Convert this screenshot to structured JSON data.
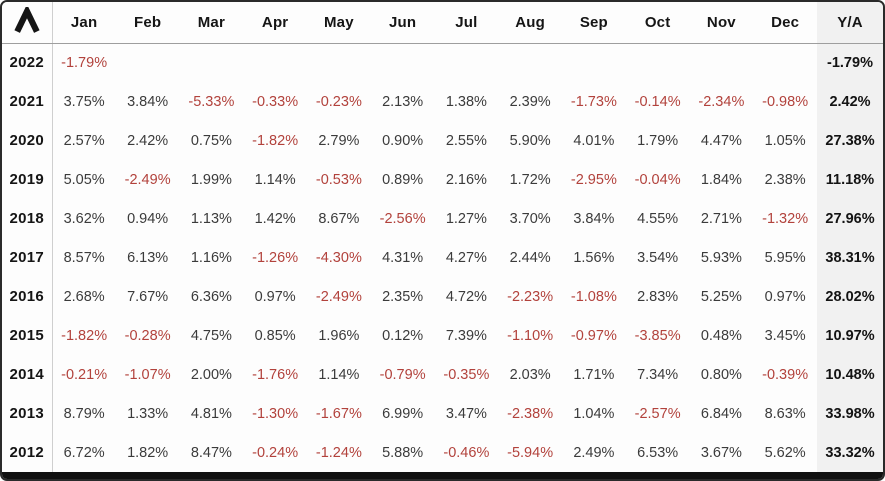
{
  "brand": {
    "logo_glyph": "caret-lambda"
  },
  "columns": [
    "Jan",
    "Feb",
    "Mar",
    "Apr",
    "May",
    "Jun",
    "Jul",
    "Aug",
    "Sep",
    "Oct",
    "Nov",
    "Dec"
  ],
  "ya_label": "Y/A",
  "colors": {
    "negative": "#b2423c",
    "positive": "#3b3b3b",
    "ya_background": "#f1f1f1",
    "header_rule": "#9e9e9e"
  },
  "chart_data": {
    "type": "table",
    "title": "Monthly returns by year (%) with yearly aggregate Y/A",
    "columns": [
      "Jan",
      "Feb",
      "Mar",
      "Apr",
      "May",
      "Jun",
      "Jul",
      "Aug",
      "Sep",
      "Oct",
      "Nov",
      "Dec",
      "Y/A"
    ],
    "rows_key": "rows"
  },
  "rows": [
    {
      "year": "2022",
      "values": [
        "-1.79%",
        "",
        "",
        "",
        "",
        "",
        "",
        "",
        "",
        "",
        "",
        ""
      ],
      "ya": "-1.79%"
    },
    {
      "year": "2021",
      "values": [
        "3.75%",
        "3.84%",
        "-5.33%",
        "-0.33%",
        "-0.23%",
        "2.13%",
        "1.38%",
        "2.39%",
        "-1.73%",
        "-0.14%",
        "-2.34%",
        "-0.98%"
      ],
      "ya": "2.42%"
    },
    {
      "year": "2020",
      "values": [
        "2.57%",
        "2.42%",
        "0.75%",
        "-1.82%",
        "2.79%",
        "0.90%",
        "2.55%",
        "5.90%",
        "4.01%",
        "1.79%",
        "4.47%",
        "1.05%"
      ],
      "ya": "27.38%"
    },
    {
      "year": "2019",
      "values": [
        "5.05%",
        "-2.49%",
        "1.99%",
        "1.14%",
        "-0.53%",
        "0.89%",
        "2.16%",
        "1.72%",
        "-2.95%",
        "-0.04%",
        "1.84%",
        "2.38%"
      ],
      "ya": "11.18%"
    },
    {
      "year": "2018",
      "values": [
        "3.62%",
        "0.94%",
        "1.13%",
        "1.42%",
        "8.67%",
        "-2.56%",
        "1.27%",
        "3.70%",
        "3.84%",
        "4.55%",
        "2.71%",
        "-1.32%"
      ],
      "ya": "27.96%"
    },
    {
      "year": "2017",
      "values": [
        "8.57%",
        "6.13%",
        "1.16%",
        "-1.26%",
        "-4.30%",
        "4.31%",
        "4.27%",
        "2.44%",
        "1.56%",
        "3.54%",
        "5.93%",
        "5.95%"
      ],
      "ya": "38.31%"
    },
    {
      "year": "2016",
      "values": [
        "2.68%",
        "7.67%",
        "6.36%",
        "0.97%",
        "-2.49%",
        "2.35%",
        "4.72%",
        "-2.23%",
        "-1.08%",
        "2.83%",
        "5.25%",
        "0.97%"
      ],
      "ya": "28.02%"
    },
    {
      "year": "2015",
      "values": [
        "-1.82%",
        "-0.28%",
        "4.75%",
        "0.85%",
        "1.96%",
        "0.12%",
        "7.39%",
        "-1.10%",
        "-0.97%",
        "-3.85%",
        "0.48%",
        "3.45%"
      ],
      "ya": "10.97%"
    },
    {
      "year": "2014",
      "values": [
        "-0.21%",
        "-1.07%",
        "2.00%",
        "-1.76%",
        "1.14%",
        "-0.79%",
        "-0.35%",
        "2.03%",
        "1.71%",
        "7.34%",
        "0.80%",
        "-0.39%"
      ],
      "ya": "10.48%"
    },
    {
      "year": "2013",
      "values": [
        "8.79%",
        "1.33%",
        "4.81%",
        "-1.30%",
        "-1.67%",
        "6.99%",
        "3.47%",
        "-2.38%",
        "1.04%",
        "-2.57%",
        "6.84%",
        "8.63%"
      ],
      "ya": "33.98%"
    },
    {
      "year": "2012",
      "values": [
        "6.72%",
        "1.82%",
        "8.47%",
        "-0.24%",
        "-1.24%",
        "5.88%",
        "-0.46%",
        "-5.94%",
        "2.49%",
        "6.53%",
        "3.67%",
        "5.62%"
      ],
      "ya": "33.32%"
    }
  ]
}
